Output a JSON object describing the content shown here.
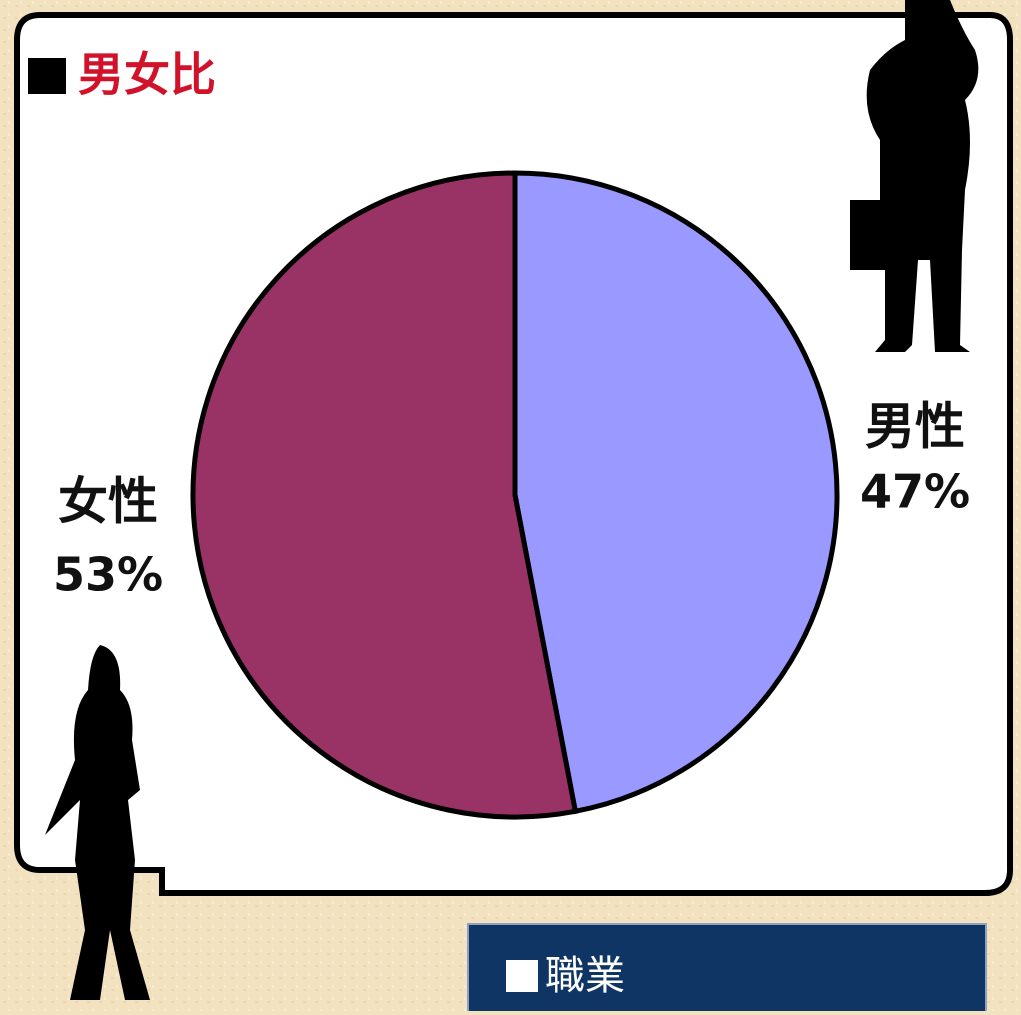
{
  "chart_data": {
    "type": "pie",
    "title": "男女比",
    "categories": [
      "男性",
      "女性"
    ],
    "values": [
      47,
      53
    ],
    "value_labels": [
      "47%",
      "53%"
    ],
    "colors": [
      "#9999ff",
      "#993366"
    ]
  },
  "section": {
    "heading": "職業"
  }
}
